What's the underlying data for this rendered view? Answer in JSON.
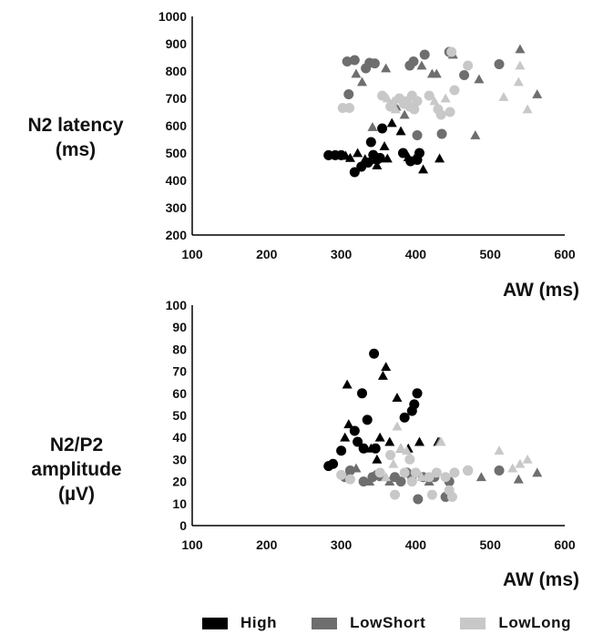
{
  "legend": [
    {
      "name": "High",
      "color": "#000000"
    },
    {
      "name": "LowShort",
      "color": "#6e6e6e"
    },
    {
      "name": "LowLong",
      "color": "#c8c8c8"
    }
  ],
  "chart_data": [
    {
      "type": "scatter",
      "title": "",
      "xlabel": "AW (ms)",
      "ylabel": "N2 latency (ms)",
      "xlim": [
        100,
        600
      ],
      "ylim": [
        200,
        1000
      ],
      "xticks": [
        "100",
        "200",
        "300",
        "400",
        "500",
        "600"
      ],
      "yticks": [
        "200",
        "300",
        "400",
        "500",
        "600",
        "700",
        "800",
        "900",
        "1000"
      ],
      "grid": false,
      "marker_note": "circles and triangles",
      "series": [
        {
          "name": "High",
          "color": "#000000",
          "points": [
            {
              "x": 283,
              "y": 492,
              "m": "circle"
            },
            {
              "x": 292,
              "y": 492,
              "m": "circle"
            },
            {
              "x": 300,
              "y": 492,
              "m": "circle"
            },
            {
              "x": 306,
              "y": 490,
              "m": "triangle"
            },
            {
              "x": 312,
              "y": 482,
              "m": "triangle"
            },
            {
              "x": 318,
              "y": 430,
              "m": "circle"
            },
            {
              "x": 322,
              "y": 500,
              "m": "triangle"
            },
            {
              "x": 327,
              "y": 450,
              "m": "circle"
            },
            {
              "x": 332,
              "y": 478,
              "m": "triangle"
            },
            {
              "x": 336,
              "y": 465,
              "m": "circle"
            },
            {
              "x": 340,
              "y": 540,
              "m": "circle"
            },
            {
              "x": 343,
              "y": 493,
              "m": "circle"
            },
            {
              "x": 346,
              "y": 475,
              "m": "triangle"
            },
            {
              "x": 348,
              "y": 455,
              "m": "triangle"
            },
            {
              "x": 352,
              "y": 482,
              "m": "circle"
            },
            {
              "x": 355,
              "y": 590,
              "m": "circle"
            },
            {
              "x": 358,
              "y": 525,
              "m": "triangle"
            },
            {
              "x": 362,
              "y": 480,
              "m": "triangle"
            },
            {
              "x": 368,
              "y": 610,
              "m": "triangle"
            },
            {
              "x": 383,
              "y": 500,
              "m": "circle"
            },
            {
              "x": 390,
              "y": 485,
              "m": "triangle"
            },
            {
              "x": 393,
              "y": 470,
              "m": "circle"
            },
            {
              "x": 398,
              "y": 478,
              "m": "triangle"
            },
            {
              "x": 402,
              "y": 475,
              "m": "circle"
            },
            {
              "x": 405,
              "y": 500,
              "m": "circle"
            },
            {
              "x": 410,
              "y": 440,
              "m": "triangle"
            },
            {
              "x": 432,
              "y": 480,
              "m": "triangle"
            },
            {
              "x": 380,
              "y": 580,
              "m": "triangle"
            }
          ]
        },
        {
          "name": "LowShort",
          "color": "#6e6e6e",
          "points": [
            {
              "x": 308,
              "y": 835,
              "m": "circle"
            },
            {
              "x": 310,
              "y": 715,
              "m": "circle"
            },
            {
              "x": 318,
              "y": 840,
              "m": "circle"
            },
            {
              "x": 320,
              "y": 790,
              "m": "triangle"
            },
            {
              "x": 328,
              "y": 760,
              "m": "triangle"
            },
            {
              "x": 333,
              "y": 810,
              "m": "circle"
            },
            {
              "x": 338,
              "y": 830,
              "m": "circle"
            },
            {
              "x": 345,
              "y": 828,
              "m": "circle"
            },
            {
              "x": 342,
              "y": 595,
              "m": "triangle"
            },
            {
              "x": 360,
              "y": 810,
              "m": "triangle"
            },
            {
              "x": 374,
              "y": 670,
              "m": "triangle"
            },
            {
              "x": 385,
              "y": 640,
              "m": "triangle"
            },
            {
              "x": 392,
              "y": 820,
              "m": "circle"
            },
            {
              "x": 397,
              "y": 835,
              "m": "circle"
            },
            {
              "x": 402,
              "y": 565,
              "m": "circle"
            },
            {
              "x": 408,
              "y": 820,
              "m": "triangle"
            },
            {
              "x": 412,
              "y": 860,
              "m": "circle"
            },
            {
              "x": 422,
              "y": 790,
              "m": "triangle"
            },
            {
              "x": 428,
              "y": 790,
              "m": "triangle"
            },
            {
              "x": 435,
              "y": 570,
              "m": "circle"
            },
            {
              "x": 445,
              "y": 870,
              "m": "circle"
            },
            {
              "x": 450,
              "y": 860,
              "m": "triangle"
            },
            {
              "x": 465,
              "y": 785,
              "m": "circle"
            },
            {
              "x": 480,
              "y": 565,
              "m": "triangle"
            },
            {
              "x": 485,
              "y": 770,
              "m": "triangle"
            },
            {
              "x": 512,
              "y": 825,
              "m": "circle"
            },
            {
              "x": 540,
              "y": 880,
              "m": "triangle"
            },
            {
              "x": 563,
              "y": 715,
              "m": "triangle"
            }
          ]
        },
        {
          "name": "LowLong",
          "color": "#c8c8c8",
          "points": [
            {
              "x": 302,
              "y": 665,
              "m": "circle"
            },
            {
              "x": 311,
              "y": 665,
              "m": "circle"
            },
            {
              "x": 355,
              "y": 710,
              "m": "circle"
            },
            {
              "x": 362,
              "y": 700,
              "m": "triangle"
            },
            {
              "x": 366,
              "y": 670,
              "m": "circle"
            },
            {
              "x": 370,
              "y": 690,
              "m": "triangle"
            },
            {
              "x": 373,
              "y": 660,
              "m": "triangle"
            },
            {
              "x": 378,
              "y": 700,
              "m": "circle"
            },
            {
              "x": 384,
              "y": 680,
              "m": "circle"
            },
            {
              "x": 388,
              "y": 690,
              "m": "circle"
            },
            {
              "x": 392,
              "y": 670,
              "m": "circle"
            },
            {
              "x": 395,
              "y": 710,
              "m": "circle"
            },
            {
              "x": 398,
              "y": 660,
              "m": "circle"
            },
            {
              "x": 402,
              "y": 690,
              "m": "circle"
            },
            {
              "x": 418,
              "y": 710,
              "m": "circle"
            },
            {
              "x": 425,
              "y": 690,
              "m": "triangle"
            },
            {
              "x": 430,
              "y": 660,
              "m": "circle"
            },
            {
              "x": 434,
              "y": 640,
              "m": "circle"
            },
            {
              "x": 440,
              "y": 700,
              "m": "triangle"
            },
            {
              "x": 446,
              "y": 650,
              "m": "circle"
            },
            {
              "x": 448,
              "y": 870,
              "m": "circle"
            },
            {
              "x": 452,
              "y": 730,
              "m": "circle"
            },
            {
              "x": 470,
              "y": 820,
              "m": "circle"
            },
            {
              "x": 518,
              "y": 705,
              "m": "triangle"
            },
            {
              "x": 538,
              "y": 760,
              "m": "triangle"
            },
            {
              "x": 540,
              "y": 820,
              "m": "triangle"
            },
            {
              "x": 550,
              "y": 660,
              "m": "triangle"
            }
          ]
        }
      ]
    },
    {
      "type": "scatter",
      "title": "",
      "xlabel": "AW (ms)",
      "ylabel": "N2/P2 amplitude (µV)",
      "xlim": [
        100,
        600
      ],
      "ylim": [
        0,
        100
      ],
      "xticks": [
        "100",
        "200",
        "300",
        "400",
        "500",
        "600"
      ],
      "yticks": [
        "0",
        "10",
        "20",
        "30",
        "40",
        "50",
        "60",
        "70",
        "80",
        "90",
        "100"
      ],
      "grid": false,
      "series": [
        {
          "name": "High",
          "color": "#000000",
          "points": [
            {
              "x": 283,
              "y": 27,
              "m": "circle"
            },
            {
              "x": 289,
              "y": 28,
              "m": "circle"
            },
            {
              "x": 300,
              "y": 34,
              "m": "circle"
            },
            {
              "x": 305,
              "y": 40,
              "m": "triangle"
            },
            {
              "x": 308,
              "y": 64,
              "m": "triangle"
            },
            {
              "x": 310,
              "y": 46,
              "m": "triangle"
            },
            {
              "x": 318,
              "y": 43,
              "m": "circle"
            },
            {
              "x": 322,
              "y": 38,
              "m": "circle"
            },
            {
              "x": 328,
              "y": 60,
              "m": "circle"
            },
            {
              "x": 330,
              "y": 35,
              "m": "circle"
            },
            {
              "x": 335,
              "y": 48,
              "m": "circle"
            },
            {
              "x": 340,
              "y": 35,
              "m": "triangle"
            },
            {
              "x": 344,
              "y": 78,
              "m": "circle"
            },
            {
              "x": 346,
              "y": 35,
              "m": "circle"
            },
            {
              "x": 348,
              "y": 30,
              "m": "triangle"
            },
            {
              "x": 352,
              "y": 40,
              "m": "triangle"
            },
            {
              "x": 356,
              "y": 68,
              "m": "triangle"
            },
            {
              "x": 360,
              "y": 72,
              "m": "triangle"
            },
            {
              "x": 365,
              "y": 38,
              "m": "triangle"
            },
            {
              "x": 375,
              "y": 58,
              "m": "triangle"
            },
            {
              "x": 380,
              "y": 35,
              "m": "triangle"
            },
            {
              "x": 385,
              "y": 49,
              "m": "circle"
            },
            {
              "x": 390,
              "y": 35,
              "m": "triangle"
            },
            {
              "x": 395,
              "y": 52,
              "m": "circle"
            },
            {
              "x": 398,
              "y": 55,
              "m": "circle"
            },
            {
              "x": 402,
              "y": 60,
              "m": "circle"
            },
            {
              "x": 405,
              "y": 38,
              "m": "triangle"
            },
            {
              "x": 430,
              "y": 38,
              "m": "triangle"
            }
          ]
        },
        {
          "name": "LowShort",
          "color": "#6e6e6e",
          "points": [
            {
              "x": 305,
              "y": 22,
              "m": "circle"
            },
            {
              "x": 312,
              "y": 25,
              "m": "circle"
            },
            {
              "x": 320,
              "y": 26,
              "m": "triangle"
            },
            {
              "x": 330,
              "y": 20,
              "m": "circle"
            },
            {
              "x": 338,
              "y": 20,
              "m": "triangle"
            },
            {
              "x": 342,
              "y": 22,
              "m": "circle"
            },
            {
              "x": 348,
              "y": 23,
              "m": "circle"
            },
            {
              "x": 355,
              "y": 22,
              "m": "triangle"
            },
            {
              "x": 365,
              "y": 20,
              "m": "triangle"
            },
            {
              "x": 372,
              "y": 22,
              "m": "circle"
            },
            {
              "x": 380,
              "y": 20,
              "m": "circle"
            },
            {
              "x": 388,
              "y": 24,
              "m": "circle"
            },
            {
              "x": 395,
              "y": 23,
              "m": "triangle"
            },
            {
              "x": 403,
              "y": 12,
              "m": "circle"
            },
            {
              "x": 410,
              "y": 22,
              "m": "circle"
            },
            {
              "x": 418,
              "y": 20,
              "m": "triangle"
            },
            {
              "x": 425,
              "y": 22,
              "m": "circle"
            },
            {
              "x": 432,
              "y": 38,
              "m": "triangle"
            },
            {
              "x": 440,
              "y": 13,
              "m": "circle"
            },
            {
              "x": 445,
              "y": 20,
              "m": "circle"
            },
            {
              "x": 470,
              "y": 25,
              "m": "circle"
            },
            {
              "x": 488,
              "y": 22,
              "m": "triangle"
            },
            {
              "x": 512,
              "y": 25,
              "m": "circle"
            },
            {
              "x": 538,
              "y": 21,
              "m": "triangle"
            },
            {
              "x": 563,
              "y": 24,
              "m": "triangle"
            }
          ]
        },
        {
          "name": "LowLong",
          "color": "#c8c8c8",
          "points": [
            {
              "x": 300,
              "y": 23,
              "m": "circle"
            },
            {
              "x": 312,
              "y": 21,
              "m": "circle"
            },
            {
              "x": 352,
              "y": 24,
              "m": "circle"
            },
            {
              "x": 360,
              "y": 22,
              "m": "triangle"
            },
            {
              "x": 366,
              "y": 32,
              "m": "circle"
            },
            {
              "x": 370,
              "y": 28,
              "m": "triangle"
            },
            {
              "x": 372,
              "y": 14,
              "m": "circle"
            },
            {
              "x": 375,
              "y": 45,
              "m": "triangle"
            },
            {
              "x": 380,
              "y": 35,
              "m": "triangle"
            },
            {
              "x": 385,
              "y": 24,
              "m": "circle"
            },
            {
              "x": 388,
              "y": 34,
              "m": "triangle"
            },
            {
              "x": 392,
              "y": 30,
              "m": "circle"
            },
            {
              "x": 395,
              "y": 20,
              "m": "circle"
            },
            {
              "x": 400,
              "y": 24,
              "m": "circle"
            },
            {
              "x": 408,
              "y": 22,
              "m": "triangle"
            },
            {
              "x": 418,
              "y": 22,
              "m": "circle"
            },
            {
              "x": 422,
              "y": 14,
              "m": "circle"
            },
            {
              "x": 428,
              "y": 24,
              "m": "circle"
            },
            {
              "x": 434,
              "y": 38,
              "m": "triangle"
            },
            {
              "x": 440,
              "y": 22,
              "m": "circle"
            },
            {
              "x": 445,
              "y": 16,
              "m": "circle"
            },
            {
              "x": 449,
              "y": 13,
              "m": "circle"
            },
            {
              "x": 452,
              "y": 24,
              "m": "circle"
            },
            {
              "x": 470,
              "y": 25,
              "m": "circle"
            },
            {
              "x": 512,
              "y": 34,
              "m": "triangle"
            },
            {
              "x": 530,
              "y": 26,
              "m": "triangle"
            },
            {
              "x": 540,
              "y": 28,
              "m": "triangle"
            },
            {
              "x": 550,
              "y": 30,
              "m": "triangle"
            }
          ]
        }
      ]
    }
  ]
}
